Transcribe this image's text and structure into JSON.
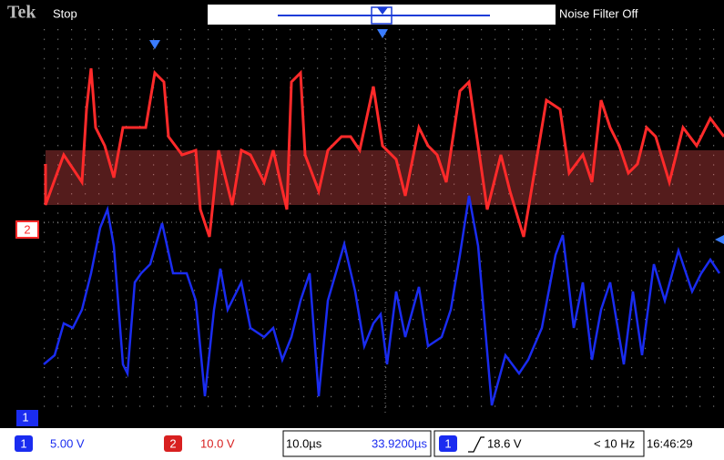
{
  "header": {
    "brand": "Tek",
    "status": "Stop",
    "filter": "Noise Filter Off"
  },
  "markers": {
    "ch2": "2",
    "ch1": "1"
  },
  "status_bar": {
    "ch1_label": "1",
    "ch1_scale": "5.00 V",
    "ch2_label": "2",
    "ch2_scale": "10.0 V",
    "timebase": "10.0µs",
    "position": "33.9200µs",
    "trig_source": "1",
    "trig_level": "18.6 V",
    "freq": "< 10 Hz",
    "time": "16:46:29"
  }
}
